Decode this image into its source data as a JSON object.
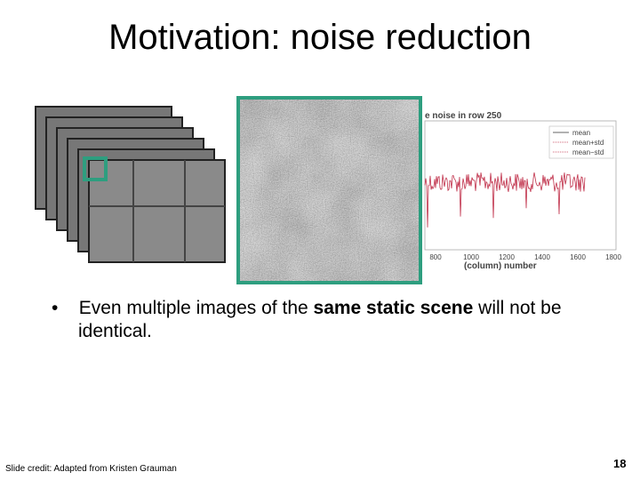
{
  "header": {
    "title": "Motivation: noise reduction"
  },
  "figure": {
    "plot_title": "e noise in row 250",
    "legend": [
      "mean",
      "mean+std",
      "mean−std"
    ],
    "x_tick_labels": [
      "800",
      "1000",
      "1200",
      "1400",
      "1600",
      "1800"
    ],
    "x_axis_label": "(column) number"
  },
  "bullet": {
    "parts": [
      "Even multiple images of the ",
      "same static scene",
      " will not be identical."
    ]
  },
  "footer": {
    "credit": "Slide credit: Adapted from Kristen Grauman",
    "page_number": "18"
  }
}
